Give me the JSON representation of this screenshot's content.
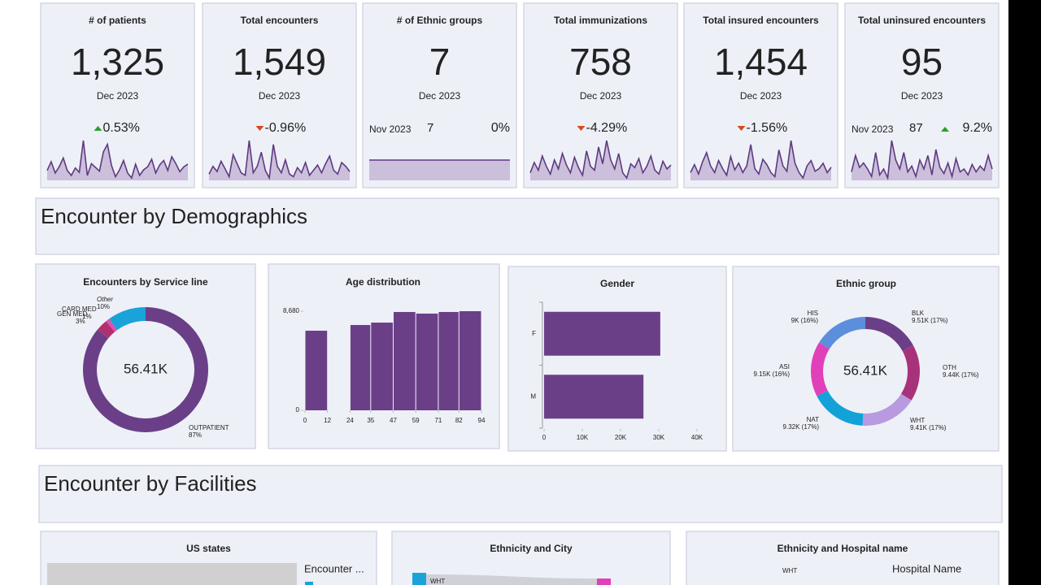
{
  "kpis": [
    {
      "title": "# of patients",
      "value": "1,325",
      "period": "Dec 2023",
      "change": "0.53%",
      "trend": "up",
      "spark": [
        30,
        44,
        26,
        36,
        50,
        30,
        22,
        34,
        27,
        78,
        22,
        41,
        35,
        29,
        60,
        72,
        38,
        20,
        31,
        46,
        26,
        18,
        40,
        22,
        31,
        36,
        48,
        26,
        39,
        46,
        30,
        52,
        41,
        28,
        36,
        40
      ]
    },
    {
      "title": "Total encounters",
      "value": "1,549",
      "period": "Dec 2023",
      "change": "-0.96%",
      "trend": "down",
      "spark": [
        28,
        40,
        32,
        48,
        36,
        24,
        58,
        44,
        30,
        26,
        80,
        30,
        40,
        62,
        34,
        22,
        74,
        40,
        30,
        50,
        28,
        24,
        38,
        30,
        46,
        26,
        34,
        42,
        30,
        44,
        56,
        34,
        28,
        46,
        40,
        32
      ]
    },
    {
      "title": "# of Ethnic groups",
      "value": "7",
      "period": "Dec 2023",
      "prev_period": "Nov 2023",
      "prev_value": "7",
      "change": "0%",
      "trend": null,
      "spark": [
        7,
        7,
        7,
        7,
        7,
        7,
        7,
        7,
        7,
        7,
        7,
        7,
        7,
        7,
        7,
        7,
        7,
        7,
        7,
        7,
        7,
        7,
        7,
        7
      ]
    },
    {
      "title": "Total immunizations",
      "value": "758",
      "period": "Dec 2023",
      "change": "-4.29%",
      "trend": "down",
      "spark": [
        30,
        46,
        34,
        56,
        40,
        28,
        50,
        36,
        60,
        42,
        30,
        54,
        38,
        26,
        64,
        40,
        34,
        70,
        44,
        80,
        50,
        36,
        60,
        30,
        22,
        44,
        38,
        52,
        30,
        40,
        56,
        34,
        28,
        48,
        36,
        42
      ]
    },
    {
      "title": "Total insured encounters",
      "value": "1,454",
      "period": "Dec 2023",
      "change": "-1.56%",
      "trend": "down",
      "spark": [
        30,
        42,
        28,
        46,
        60,
        40,
        30,
        48,
        36,
        26,
        54,
        34,
        44,
        30,
        40,
        72,
        36,
        28,
        50,
        42,
        30,
        24,
        64,
        40,
        32,
        78,
        44,
        30,
        22,
        40,
        48,
        32,
        36,
        44,
        30,
        38
      ]
    },
    {
      "title": "Total uninsured encounters",
      "value": "95",
      "period": "Dec 2023",
      "prev_period": "Nov 2023",
      "prev_value": "87",
      "change": "9.2%",
      "trend": "up",
      "spark": [
        36,
        58,
        42,
        48,
        40,
        30,
        62,
        32,
        40,
        28,
        78,
        52,
        40,
        62,
        36,
        44,
        30,
        52,
        40,
        58,
        32,
        66,
        42,
        34,
        48,
        30,
        54,
        36,
        40,
        32,
        46,
        36,
        44,
        38,
        58,
        40
      ]
    }
  ],
  "sections": [
    "Encounter by Demographics",
    "Encounter by Facilities"
  ],
  "service_line": {
    "type": "pie",
    "title": "Encounters by Service line",
    "center_label": "56.41K",
    "categories": [
      "OUTPATIENT",
      "GEN MED",
      "CARD MED",
      "Other"
    ],
    "values": [
      87,
      3,
      1,
      10
    ],
    "value_labels": [
      "87%",
      "3%",
      "1%",
      "10%"
    ],
    "colors": [
      "#6b3f87",
      "#b0306f",
      "#e24fae",
      "#19a3d9"
    ]
  },
  "age": {
    "type": "histogram",
    "title": "Age distribution",
    "bins": [
      0,
      12,
      24,
      35,
      47,
      59,
      71,
      82,
      94
    ],
    "values": [
      6970,
      0,
      7470,
      7680,
      8610,
      8470,
      8610,
      8680
    ],
    "xlim": [
      0,
      94
    ],
    "xticks": [
      0,
      12,
      24,
      35,
      47,
      59,
      71,
      82,
      94
    ],
    "ylim": [
      0,
      8680
    ],
    "yticks": [
      0,
      {
        "value": 8680,
        "label": "8,680"
      }
    ],
    "color": "#6b3f87"
  },
  "gender": {
    "type": "bar",
    "title": "Gender",
    "categories": [
      "F",
      "M"
    ],
    "values": [
      30400,
      26000
    ],
    "xlim": [
      0,
      40000
    ],
    "xticks": [
      0,
      {
        "value": 10000,
        "label": "10K"
      },
      {
        "value": 20000,
        "label": "20K"
      },
      {
        "value": 30000,
        "label": "30K"
      },
      {
        "value": 40000,
        "label": "40K"
      }
    ],
    "color": "#6b3f87"
  },
  "ethnic": {
    "type": "pie",
    "title": "Ethnic group",
    "center_label": "56.41K",
    "categories": [
      "BLK",
      "OTH",
      "WHT",
      "NAT",
      "ASI",
      "HIS"
    ],
    "values": [
      9510,
      9440,
      9410,
      9320,
      9150,
      9000
    ],
    "value_labels": [
      "9.51K (17%)",
      "9.44K (17%)",
      "9.41K (17%)",
      "9.32K (17%)",
      "9.15K (16%)",
      "9K (16%)"
    ],
    "colors": [
      "#6b3f87",
      "#a8327a",
      "#b89ae0",
      "#12a2d8",
      "#e040b8",
      "#5b8fdc"
    ]
  },
  "facilities": [
    {
      "title": "US states",
      "legend_title": "Encounter ..."
    },
    {
      "title": "Ethnicity and City",
      "label": "WHT"
    },
    {
      "title": "Ethnicity and Hospital name",
      "label": "WHT",
      "legend_title": "Hospital Name"
    }
  ]
}
